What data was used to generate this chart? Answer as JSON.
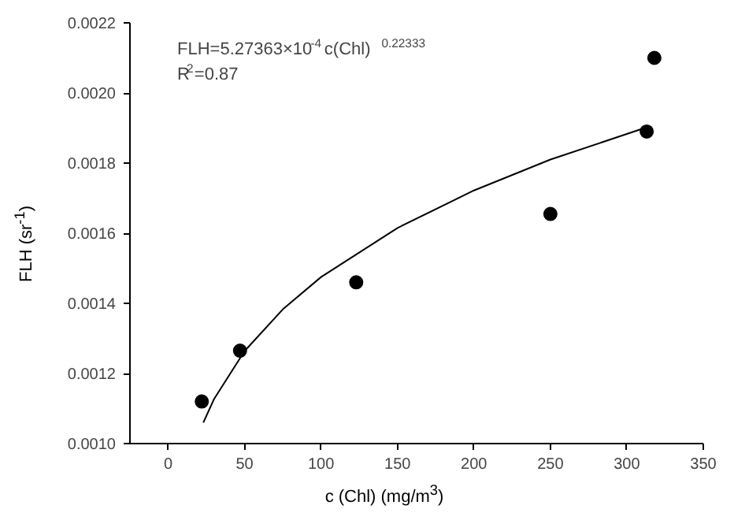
{
  "chart_data": {
    "type": "scatter",
    "xlabel": "c (Chl) (mg/m$^{3}$)",
    "ylabel": "FLH (sr$^{-1}$)",
    "xlim": [
      -25,
      350
    ],
    "xticks": [
      0,
      50,
      100,
      150,
      200,
      250,
      300,
      350
    ],
    "ylim": [
      0.001,
      0.0022
    ],
    "yticks": [
      {
        "value": 0.001,
        "label": "0.0010"
      },
      {
        "value": 0.0012,
        "label": "0.0012"
      },
      {
        "value": 0.0014,
        "label": "0.0014"
      },
      {
        "value": 0.0016,
        "label": "0.0016"
      },
      {
        "value": 0.0018,
        "label": "0.0018"
      },
      {
        "value": 0.002,
        "label": "0.0020"
      },
      {
        "value": 0.0022,
        "label": "0.0022"
      }
    ],
    "grid": false,
    "series": [
      {
        "color": "#000000",
        "marker": "circle",
        "x": [
          22,
          47,
          123,
          250,
          313,
          318
        ],
        "values": [
          0.00112,
          0.001265,
          0.00146,
          0.001655,
          0.00189,
          0.0021
        ]
      },
      {
        "type": "line",
        "color": "#000000",
        "line_style": "solid",
        "x": [
          23,
          30,
          50,
          75,
          100,
          150,
          200,
          250,
          315
        ],
        "values": [
          0.00106,
          0.001127,
          0.001264,
          0.001383,
          0.001475,
          0.001615,
          0.001722,
          0.00181,
          0.001905
        ]
      }
    ],
    "annotations": [
      "FLH=5.27363×10$^{-4}$c(Chl)$^{0.22333}$",
      "R$^{2}$=0.87"
    ]
  }
}
